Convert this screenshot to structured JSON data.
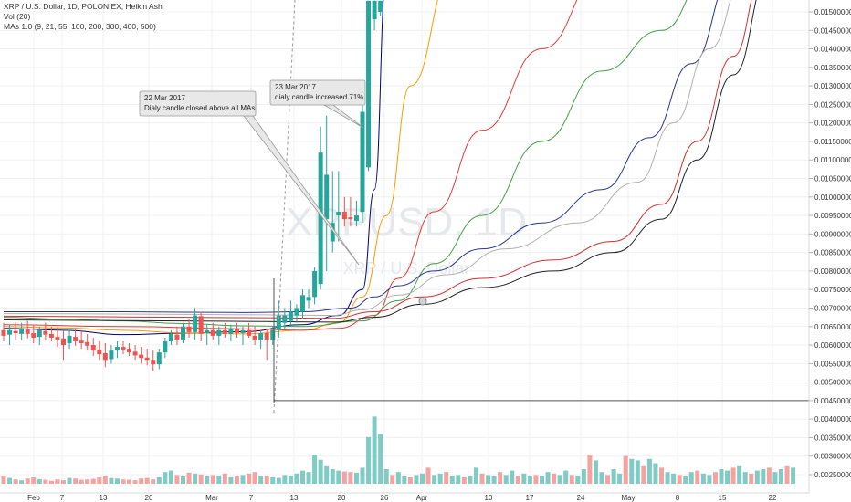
{
  "legend": {
    "title": "XRP / U.S. Dollar, 1D, POLONIEX, Heikin Ashi",
    "volume": "Vol (20)",
    "mas": "MAs 1.0 (9, 21, 55, 100, 200, 300, 400, 500)"
  },
  "watermark": {
    "symbol": "XRPUSD, 1D",
    "name": "XRP / U.S. Dollar"
  },
  "annotations": [
    {
      "date": "22 Mar 2017",
      "text": "Dialy candle closed above all MAs"
    },
    {
      "date": "23 Mar 2017",
      "text": "dialy candle increased 71%"
    }
  ],
  "colors": {
    "up": "#26a69a",
    "down": "#ef5350",
    "vol_up": "#80cbc4",
    "vol_down": "#f4a3a1",
    "grid": "#eef0f3",
    "ma9": "#000080",
    "ma21": "#ff9800",
    "ma55": "#e53935",
    "ma100": "#43a047",
    "ma200": "#283593",
    "ma300": "#b0b0b0",
    "ma400": "#d32f2f",
    "ma500": "#222222"
  },
  "chart_data": {
    "type": "candlestick",
    "price_axis": {
      "ylim": [
        0.00225,
        0.0155
      ],
      "ticks": [
        "0.01500000",
        "0.01450000",
        "0.01400000",
        "0.01350000",
        "0.01300000",
        "0.01250000",
        "0.01200000",
        "0.01150000",
        "0.01100000",
        "0.01050000",
        "0.01000000",
        "0.00950000",
        "0.00900000",
        "0.00850000",
        "0.00800000",
        "0.00750000",
        "0.00700000",
        "0.00650000",
        "0.00600000",
        "0.00550000",
        "0.00500000",
        "0.00450000",
        "0.00400000",
        "0.00350000",
        "0.00300000",
        "0.00250000"
      ]
    },
    "x_labels": [
      "Feb",
      "7",
      "13",
      "20",
      "Mar",
      "7",
      "13",
      "20",
      "26",
      "Apr",
      "10",
      "17",
      "24",
      "May",
      "8",
      "15",
      "22"
    ],
    "candles": [
      {
        "o": 0.0064,
        "h": 0.0066,
        "l": 0.0061,
        "c": 0.00625
      },
      {
        "o": 0.00628,
        "h": 0.00655,
        "l": 0.006,
        "c": 0.0064
      },
      {
        "o": 0.00638,
        "h": 0.00662,
        "l": 0.00615,
        "c": 0.00632
      },
      {
        "o": 0.0063,
        "h": 0.0066,
        "l": 0.00612,
        "c": 0.00645
      },
      {
        "o": 0.00642,
        "h": 0.00665,
        "l": 0.00618,
        "c": 0.0063
      },
      {
        "o": 0.00632,
        "h": 0.00655,
        "l": 0.00605,
        "c": 0.0062
      },
      {
        "o": 0.00622,
        "h": 0.0065,
        "l": 0.006,
        "c": 0.0064
      },
      {
        "o": 0.00638,
        "h": 0.0066,
        "l": 0.00612,
        "c": 0.00628
      },
      {
        "o": 0.0063,
        "h": 0.0065,
        "l": 0.0061,
        "c": 0.0062
      },
      {
        "o": 0.00622,
        "h": 0.00648,
        "l": 0.00595,
        "c": 0.00615
      },
      {
        "o": 0.00618,
        "h": 0.0064,
        "l": 0.0056,
        "c": 0.006
      },
      {
        "o": 0.00605,
        "h": 0.0064,
        "l": 0.0059,
        "c": 0.00625
      },
      {
        "o": 0.00622,
        "h": 0.00645,
        "l": 0.00598,
        "c": 0.0061
      },
      {
        "o": 0.00612,
        "h": 0.0064,
        "l": 0.0059,
        "c": 0.00605
      },
      {
        "o": 0.00608,
        "h": 0.0063,
        "l": 0.00585,
        "c": 0.00598
      },
      {
        "o": 0.006,
        "h": 0.0062,
        "l": 0.0057,
        "c": 0.00585
      },
      {
        "o": 0.00588,
        "h": 0.0061,
        "l": 0.0056,
        "c": 0.00575
      },
      {
        "o": 0.00578,
        "h": 0.00605,
        "l": 0.0054,
        "c": 0.0056
      },
      {
        "o": 0.00562,
        "h": 0.006,
        "l": 0.0055,
        "c": 0.00585
      },
      {
        "o": 0.00585,
        "h": 0.0061,
        "l": 0.00565,
        "c": 0.00595
      },
      {
        "o": 0.00595,
        "h": 0.0061,
        "l": 0.00575,
        "c": 0.00588
      },
      {
        "o": 0.0059,
        "h": 0.00605,
        "l": 0.0057,
        "c": 0.0058
      },
      {
        "o": 0.00582,
        "h": 0.006,
        "l": 0.0056,
        "c": 0.00572
      },
      {
        "o": 0.00574,
        "h": 0.00595,
        "l": 0.0055,
        "c": 0.00565
      },
      {
        "o": 0.00566,
        "h": 0.0059,
        "l": 0.00545,
        "c": 0.0056
      },
      {
        "o": 0.0056,
        "h": 0.00585,
        "l": 0.0053,
        "c": 0.00548
      },
      {
        "o": 0.00548,
        "h": 0.0059,
        "l": 0.00535,
        "c": 0.0058
      },
      {
        "o": 0.0058,
        "h": 0.0062,
        "l": 0.00565,
        "c": 0.0061
      },
      {
        "o": 0.0061,
        "h": 0.0064,
        "l": 0.006,
        "c": 0.0063
      },
      {
        "o": 0.00628,
        "h": 0.0065,
        "l": 0.006,
        "c": 0.00615
      },
      {
        "o": 0.00615,
        "h": 0.0066,
        "l": 0.00605,
        "c": 0.0065
      },
      {
        "o": 0.0065,
        "h": 0.0067,
        "l": 0.0062,
        "c": 0.00635
      },
      {
        "o": 0.00635,
        "h": 0.007,
        "l": 0.00615,
        "c": 0.0068
      },
      {
        "o": 0.00678,
        "h": 0.0069,
        "l": 0.0061,
        "c": 0.0063
      },
      {
        "o": 0.00632,
        "h": 0.00655,
        "l": 0.006,
        "c": 0.0064
      },
      {
        "o": 0.0064,
        "h": 0.0066,
        "l": 0.00615,
        "c": 0.00625
      },
      {
        "o": 0.00625,
        "h": 0.0065,
        "l": 0.006,
        "c": 0.0064
      },
      {
        "o": 0.0064,
        "h": 0.0066,
        "l": 0.0062,
        "c": 0.0063
      },
      {
        "o": 0.0063,
        "h": 0.00655,
        "l": 0.0061,
        "c": 0.00645
      },
      {
        "o": 0.00645,
        "h": 0.0066,
        "l": 0.0062,
        "c": 0.00632
      },
      {
        "o": 0.00632,
        "h": 0.0065,
        "l": 0.006,
        "c": 0.0064
      },
      {
        "o": 0.0064,
        "h": 0.0066,
        "l": 0.0062,
        "c": 0.00625
      },
      {
        "o": 0.00625,
        "h": 0.0065,
        "l": 0.006,
        "c": 0.00615
      },
      {
        "o": 0.00615,
        "h": 0.0064,
        "l": 0.0059,
        "c": 0.00632
      },
      {
        "o": 0.00632,
        "h": 0.00645,
        "l": 0.0056,
        "c": 0.00615
      },
      {
        "o": 0.00615,
        "h": 0.0065,
        "l": 0.006,
        "c": 0.0064
      },
      {
        "o": 0.0064,
        "h": 0.0072,
        "l": 0.0062,
        "c": 0.0068
      },
      {
        "o": 0.0066,
        "h": 0.007,
        "l": 0.0064,
        "c": 0.0068
      },
      {
        "o": 0.00665,
        "h": 0.0072,
        "l": 0.0065,
        "c": 0.0069
      },
      {
        "o": 0.0068,
        "h": 0.0071,
        "l": 0.0066,
        "c": 0.007
      },
      {
        "o": 0.0069,
        "h": 0.0075,
        "l": 0.0067,
        "c": 0.00735
      },
      {
        "o": 0.0072,
        "h": 0.0075,
        "l": 0.007,
        "c": 0.0073
      },
      {
        "o": 0.0073,
        "h": 0.0081,
        "l": 0.0071,
        "c": 0.008
      },
      {
        "o": 0.00765,
        "h": 0.0119,
        "l": 0.0075,
        "c": 0.0112
      },
      {
        "o": 0.0094,
        "h": 0.0122,
        "l": 0.008,
        "c": 0.0106
      },
      {
        "o": 0.0088,
        "h": 0.0107,
        "l": 0.0085,
        "c": 0.0093
      },
      {
        "o": 0.0095,
        "h": 0.0107,
        "l": 0.0088,
        "c": 0.0096
      },
      {
        "o": 0.0096,
        "h": 0.01,
        "l": 0.0092,
        "c": 0.0094
      },
      {
        "o": 0.00945,
        "h": 0.01,
        "l": 0.0092,
        "c": 0.0094
      },
      {
        "o": 0.00935,
        "h": 0.0099,
        "l": 0.0092,
        "c": 0.0095
      },
      {
        "o": 0.0096,
        "h": 0.0126,
        "l": 0.0093,
        "c": 0.0123
      },
      {
        "o": 0.0108,
        "h": 0.016,
        "l": 0.0107,
        "c": 0.0158
      },
      {
        "o": 0.0148,
        "h": 0.016,
        "l": 0.0145,
        "c": 0.0158
      },
      {
        "o": 0.015,
        "h": 0.016,
        "l": 0.0149,
        "c": 0.0158
      }
    ],
    "volume": [
      0.28,
      0.2,
      0.15,
      0.12,
      0.18,
      0.22,
      0.16,
      0.14,
      0.1,
      0.15,
      0.12,
      0.2,
      0.18,
      0.14,
      0.15,
      0.17,
      0.22,
      0.25,
      0.2,
      0.18,
      0.15,
      0.14,
      0.12,
      0.18,
      0.2,
      0.15,
      0.22,
      0.4,
      0.45,
      0.3,
      0.25,
      0.38,
      0.35,
      0.32,
      0.25,
      0.3,
      0.28,
      0.35,
      0.22,
      0.25,
      0.3,
      0.35,
      0.4,
      0.28,
      0.25,
      0.22,
      0.2,
      0.3,
      0.28,
      0.35,
      0.45,
      0.4,
      1.0,
      0.82,
      0.6,
      0.5,
      0.45,
      0.42,
      0.4,
      0.38,
      0.55,
      1.6,
      2.3,
      1.7
    ],
    "volume_right": [
      0.5,
      0.3,
      0.4,
      0.25,
      0.22,
      0.3,
      0.35,
      0.55,
      0.3,
      0.35,
      0.4,
      0.28,
      0.3,
      0.22,
      0.25,
      0.55,
      0.35,
      0.3,
      0.25,
      0.4,
      0.3,
      0.45,
      0.28,
      0.35,
      0.25,
      0.3,
      0.28,
      0.4,
      0.35,
      0.3,
      0.45,
      0.3,
      0.28,
      0.5,
      1.0,
      0.8,
      0.4,
      0.3,
      0.5,
      0.35,
      0.95,
      0.85,
      0.8,
      0.6,
      0.85,
      0.7,
      0.55,
      0.4,
      0.35,
      0.3,
      0.25,
      0.4,
      0.45,
      0.35,
      0.3,
      0.4,
      0.5,
      0.45,
      0.55,
      0.6,
      0.4,
      0.35,
      0.45,
      0.5,
      0.55,
      0.4,
      0.5,
      0.6,
      0.55
    ],
    "ma_lines": [
      {
        "period": 9,
        "points": [
          [
            0,
            0.00645
          ],
          [
            10,
            0.0064
          ],
          [
            20,
            0.00628
          ],
          [
            30,
            0.00632
          ],
          [
            40,
            0.00636
          ],
          [
            50,
            0.00655
          ],
          [
            56,
            0.0068
          ],
          [
            60,
            0.0075
          ],
          [
            62,
            0.0102
          ],
          [
            64,
            0.016
          ]
        ]
      },
      {
        "period": 21,
        "points": [
          [
            0,
            0.0065
          ],
          [
            10,
            0.00646
          ],
          [
            20,
            0.0064
          ],
          [
            30,
            0.00633
          ],
          [
            40,
            0.0063
          ],
          [
            50,
            0.0064
          ],
          [
            56,
            0.0066
          ],
          [
            60,
            0.0073
          ],
          [
            64,
            0.0095
          ],
          [
            68,
            0.013
          ],
          [
            75,
            0.016
          ]
        ]
      },
      {
        "period": 55,
        "points": [
          [
            0,
            0.00655
          ],
          [
            20,
            0.0065
          ],
          [
            40,
            0.00644
          ],
          [
            50,
            0.0064
          ],
          [
            56,
            0.00645
          ],
          [
            62,
            0.0068
          ],
          [
            66,
            0.0078
          ],
          [
            72,
            0.0096
          ],
          [
            80,
            0.0118
          ],
          [
            90,
            0.014
          ],
          [
            100,
            0.016
          ]
        ]
      },
      {
        "period": 100,
        "points": [
          [
            0,
            0.00675
          ],
          [
            10,
            0.0067
          ],
          [
            20,
            0.00665
          ],
          [
            30,
            0.00658
          ],
          [
            40,
            0.00652
          ],
          [
            50,
            0.0065
          ],
          [
            60,
            0.00665
          ],
          [
            66,
            0.0072
          ],
          [
            72,
            0.0082
          ],
          [
            80,
            0.0095
          ],
          [
            90,
            0.0115
          ],
          [
            100,
            0.0134
          ],
          [
            110,
            0.0145
          ],
          [
            118,
            0.016
          ]
        ]
      },
      {
        "period": 200,
        "points": [
          [
            0,
            0.0069
          ],
          [
            20,
            0.0069
          ],
          [
            40,
            0.00688
          ],
          [
            50,
            0.0069
          ],
          [
            58,
            0.007
          ],
          [
            62,
            0.0073
          ],
          [
            66,
            0.0076
          ],
          [
            72,
            0.008
          ],
          [
            80,
            0.0086
          ],
          [
            90,
            0.0093
          ],
          [
            100,
            0.0102
          ],
          [
            108,
            0.0116
          ],
          [
            115,
            0.0136
          ],
          [
            122,
            0.016
          ]
        ]
      },
      {
        "period": 300,
        "points": [
          [
            0,
            0.00685
          ],
          [
            20,
            0.00684
          ],
          [
            40,
            0.00682
          ],
          [
            55,
            0.0068
          ],
          [
            60,
            0.00695
          ],
          [
            66,
            0.00735
          ],
          [
            74,
            0.0079
          ],
          [
            84,
            0.0086
          ],
          [
            96,
            0.0093
          ],
          [
            106,
            0.0104
          ],
          [
            112,
            0.012
          ],
          [
            118,
            0.014
          ],
          [
            124,
            0.016
          ]
        ]
      },
      {
        "period": 400,
        "points": [
          [
            0,
            0.00678
          ],
          [
            20,
            0.00676
          ],
          [
            40,
            0.00674
          ],
          [
            55,
            0.00672
          ],
          [
            62,
            0.0069
          ],
          [
            70,
            0.0073
          ],
          [
            80,
            0.0078
          ],
          [
            92,
            0.0083
          ],
          [
            102,
            0.0088
          ],
          [
            110,
            0.0098
          ],
          [
            116,
            0.0115
          ],
          [
            122,
            0.0138
          ],
          [
            127,
            0.016
          ]
        ]
      },
      {
        "period": 500,
        "points": [
          [
            0,
            0.00668
          ],
          [
            20,
            0.00666
          ],
          [
            40,
            0.00664
          ],
          [
            55,
            0.00662
          ],
          [
            62,
            0.00675
          ],
          [
            70,
            0.0071
          ],
          [
            80,
            0.00755
          ],
          [
            92,
            0.008
          ],
          [
            102,
            0.0085
          ],
          [
            110,
            0.0094
          ],
          [
            116,
            0.011
          ],
          [
            122,
            0.0133
          ],
          [
            128,
            0.016
          ]
        ]
      }
    ],
    "hline_value": 0.0045
  }
}
